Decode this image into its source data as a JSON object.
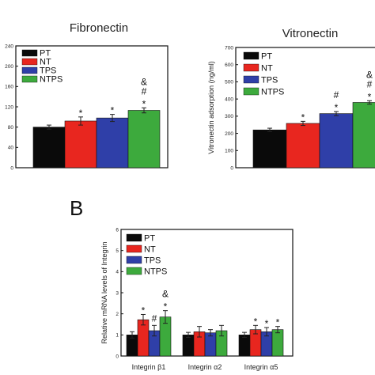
{
  "panel_letters": [
    "B"
  ],
  "colors": {
    "PT": "#0a0a0a",
    "NT": "#e8261f",
    "TPS": "#2f3fa8",
    "NTPS": "#3daa3d"
  },
  "chart_data": [
    {
      "type": "bar",
      "title": "Fibronectin",
      "ylabel": "",
      "ylim": [
        0,
        240
      ],
      "yticks": [
        "0",
        "40",
        "80",
        "120",
        "160",
        "200",
        "240"
      ],
      "categories": [
        "PT",
        "NT",
        "TPS",
        "NTPS"
      ],
      "values": [
        80,
        92,
        98,
        113
      ],
      "errors": [
        4,
        8,
        7,
        5
      ],
      "annotations": [
        [],
        [
          "*"
        ],
        [
          "*"
        ],
        [
          "*",
          "#",
          "&"
        ]
      ],
      "legend": [
        "PT",
        "NT",
        "TPS",
        "NTPS"
      ],
      "legend_position": "top-left"
    },
    {
      "type": "bar",
      "title": "Vitronectin",
      "ylabel": "Vitronectin adsorption (ng/ml)",
      "ylim": [
        0,
        700
      ],
      "yticks": [
        "0",
        "100",
        "200",
        "300",
        "400",
        "500",
        "600",
        "700"
      ],
      "categories": [
        "PT",
        "NT",
        "TPS",
        "NTPS"
      ],
      "values": [
        220,
        258,
        315,
        380
      ],
      "errors": [
        10,
        12,
        12,
        10
      ],
      "annotations": [
        [],
        [
          "*"
        ],
        [
          "*",
          "#"
        ],
        [
          "*",
          "#",
          "&"
        ]
      ],
      "legend": [
        "PT",
        "NT",
        "TPS",
        "NTPS"
      ],
      "legend_position": "top-left"
    },
    {
      "type": "bar",
      "title": "",
      "ylabel": "Relative mRNA levels of Integrin",
      "ylim": [
        0,
        6
      ],
      "yticks": [
        "0",
        "1",
        "2",
        "3",
        "4",
        "5",
        "6"
      ],
      "categories": [
        "Integrin β1",
        "Integrin α2",
        "Integrin α5"
      ],
      "series": [
        {
          "name": "PT",
          "values": [
            1.0,
            1.0,
            1.0
          ],
          "errors": [
            0.15,
            0.12,
            0.12
          ]
        },
        {
          "name": "NT",
          "values": [
            1.72,
            1.15,
            1.25
          ],
          "errors": [
            0.25,
            0.25,
            0.2
          ]
        },
        {
          "name": "TPS",
          "values": [
            1.2,
            1.1,
            1.15
          ],
          "errors": [
            0.25,
            0.15,
            0.2
          ]
        },
        {
          "name": "NTPS",
          "values": [
            1.85,
            1.2,
            1.25
          ],
          "errors": [
            0.3,
            0.25,
            0.15
          ]
        }
      ],
      "annotations": [
        [
          [],
          [
            "*"
          ],
          [
            "#"
          ],
          [
            "*",
            "&"
          ]
        ],
        [
          [],
          [],
          [],
          []
        ],
        [
          [],
          [
            "*"
          ],
          [
            "*"
          ],
          [
            "*"
          ]
        ]
      ],
      "legend": [
        "PT",
        "NT",
        "TPS",
        "NTPS"
      ],
      "legend_position": "top-left"
    }
  ]
}
